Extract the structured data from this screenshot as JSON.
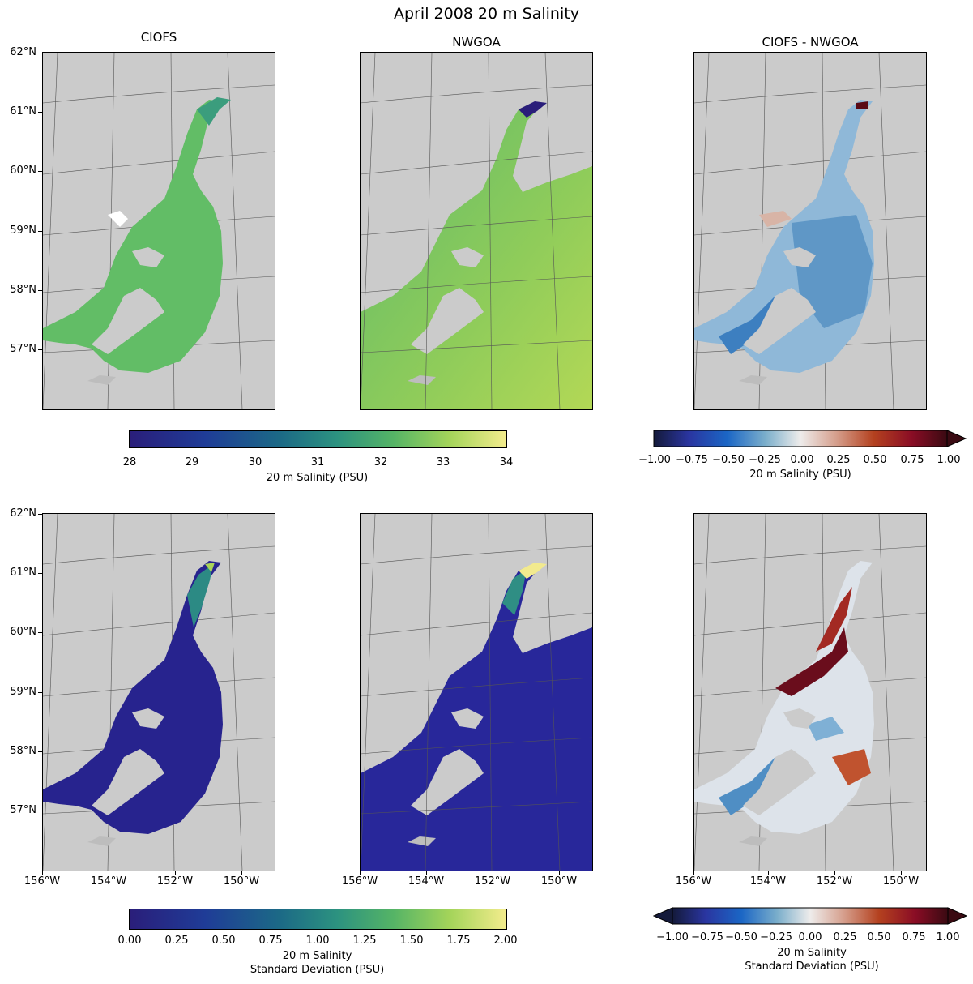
{
  "figure": {
    "title": "April 2008 20 m Salinity",
    "columns": [
      "CIOFS",
      "NWGOA",
      "CIOFS - NWGOA"
    ]
  },
  "axes": {
    "lat_labels": [
      "62°N",
      "61°N",
      "60°N",
      "59°N",
      "58°N",
      "57°N"
    ],
    "lon_labels": [
      "156°W",
      "154°W",
      "152°W",
      "150°W"
    ]
  },
  "colorbars": {
    "salinity": {
      "ticks": [
        "28",
        "29",
        "30",
        "31",
        "32",
        "33",
        "34"
      ],
      "label": "20 m Salinity (PSU)"
    },
    "salinity_diff": {
      "ticks": [
        "−1.00",
        "−0.75",
        "−0.50",
        "−0.25",
        "0.00",
        "0.25",
        "0.50",
        "0.75",
        "1.00"
      ],
      "label": "20 m Salinity (PSU)"
    },
    "std": {
      "ticks": [
        "0.00",
        "0.25",
        "0.50",
        "0.75",
        "1.00",
        "1.25",
        "1.50",
        "1.75",
        "2.00"
      ],
      "label_line1": "20 m Salinity",
      "label_line2": "Standard Deviation (PSU)"
    },
    "std_diff": {
      "ticks": [
        "−1.00",
        "−0.75",
        "−0.50",
        "−0.25",
        "0.00",
        "0.25",
        "0.50",
        "0.75",
        "1.00"
      ],
      "label_line1": "20 m Salinity",
      "label_line2": "Standard Deviation (PSU)"
    }
  },
  "colors": {
    "land": "#cbcbcb",
    "ocean_sal_ciofs": "#62bd66",
    "ocean_sal_nwgoa": "#8dcc5a",
    "std_low": "#27238e",
    "diff_neg": "#2f6fb5",
    "diff_pos": "#6a0d1c"
  }
}
